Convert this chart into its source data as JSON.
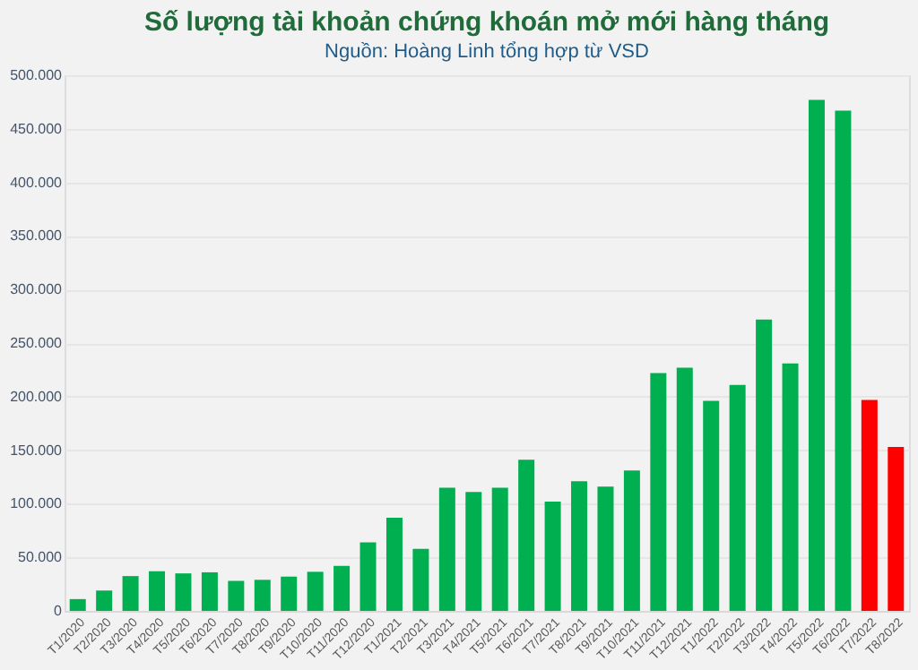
{
  "chart_data": {
    "type": "bar",
    "title": "Số lượng tài khoản chứng khoán mở mới hàng tháng",
    "subtitle": "Nguồn: Hoàng Linh tổng hợp từ VSD",
    "categories": [
      "T1/2020",
      "T2/2020",
      "T3/2020",
      "T4/2020",
      "T5/2020",
      "T6/2020",
      "T7/2020",
      "T8/2020",
      "T9/2020",
      "T10/2020",
      "T11/2020",
      "T12/2020",
      "T1/2021",
      "T2/2021",
      "T3/2021",
      "T4/2021",
      "T5/2021",
      "T6/2021",
      "T7/2021",
      "T8/2021",
      "T9/2021",
      "T10/2021",
      "T11/2021",
      "T12/2021",
      "T1/2022",
      "T2/2022",
      "T3/2022",
      "T4/2022",
      "T5/2022",
      "T6/2022",
      "T7/2022",
      "T8/2022"
    ],
    "values": [
      11000,
      19000,
      32500,
      37000,
      35000,
      36000,
      28000,
      29000,
      32000,
      36500,
      42000,
      64000,
      87000,
      58000,
      115000,
      111000,
      115000,
      141000,
      102000,
      121000,
      116000,
      131000,
      222000,
      227000,
      196000,
      211000,
      272000,
      231000,
      477000,
      467000,
      197000,
      153000
    ],
    "colors": [
      "#00b050",
      "#00b050",
      "#00b050",
      "#00b050",
      "#00b050",
      "#00b050",
      "#00b050",
      "#00b050",
      "#00b050",
      "#00b050",
      "#00b050",
      "#00b050",
      "#00b050",
      "#00b050",
      "#00b050",
      "#00b050",
      "#00b050",
      "#00b050",
      "#00b050",
      "#00b050",
      "#00b050",
      "#00b050",
      "#00b050",
      "#00b050",
      "#00b050",
      "#00b050",
      "#00b050",
      "#00b050",
      "#00b050",
      "#00b050",
      "#ff0000",
      "#ff0000"
    ],
    "ylim": [
      0,
      500000
    ],
    "yticks": [
      {
        "value": 0,
        "label": "0"
      },
      {
        "value": 50000,
        "label": "50.000"
      },
      {
        "value": 100000,
        "label": "100.000"
      },
      {
        "value": 150000,
        "label": "150.000"
      },
      {
        "value": 200000,
        "label": "200.000"
      },
      {
        "value": 250000,
        "label": "250.000"
      },
      {
        "value": 300000,
        "label": "300.000"
      },
      {
        "value": 350000,
        "label": "350.000"
      },
      {
        "value": 400000,
        "label": "400.000"
      },
      {
        "value": 450000,
        "label": "450.000"
      },
      {
        "value": 500000,
        "label": "500.000"
      }
    ],
    "grid": "y"
  }
}
